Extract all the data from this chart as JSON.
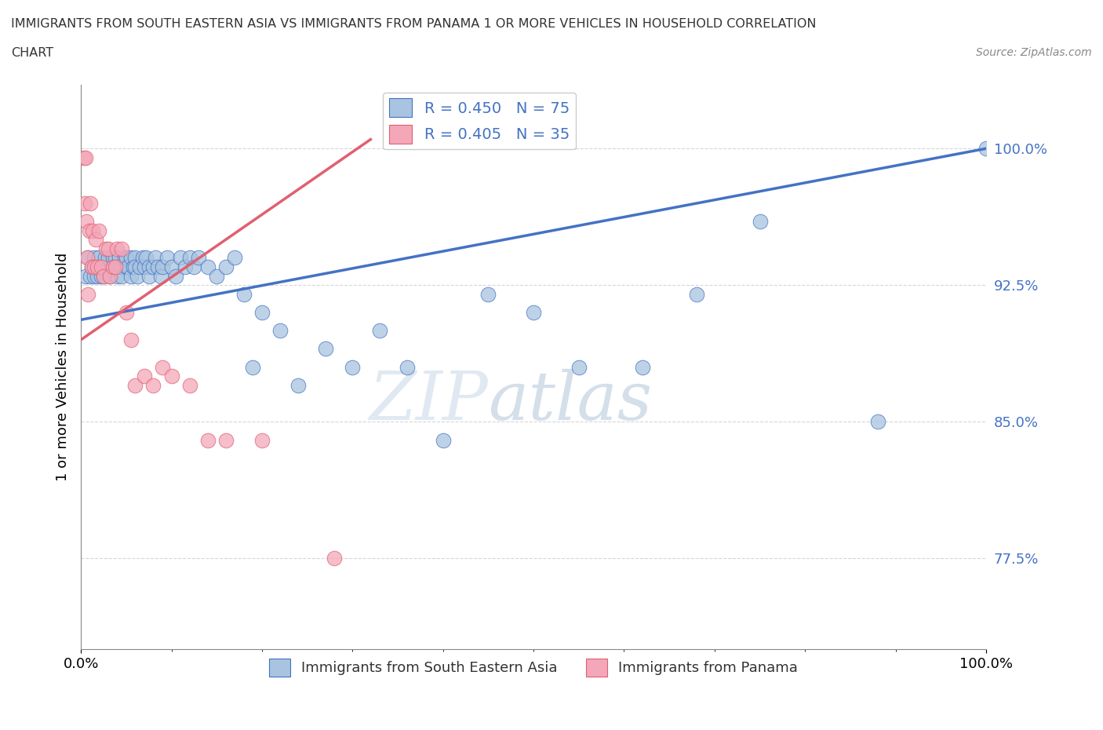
{
  "title_line1": "IMMIGRANTS FROM SOUTH EASTERN ASIA VS IMMIGRANTS FROM PANAMA 1 OR MORE VEHICLES IN HOUSEHOLD CORRELATION",
  "title_line2": "CHART",
  "source_text": "Source: ZipAtlas.com",
  "ylabel": "1 or more Vehicles in Household",
  "xmin": 0.0,
  "xmax": 1.0,
  "ymin": 0.725,
  "ymax": 1.035,
  "yticks": [
    0.775,
    0.85,
    0.925,
    1.0
  ],
  "ytick_labels": [
    "77.5%",
    "85.0%",
    "92.5%",
    "100.0%"
  ],
  "xtick_labels": [
    "0.0%",
    "100.0%"
  ],
  "xticks": [
    0.0,
    1.0
  ],
  "blue_R": 0.45,
  "blue_N": 75,
  "pink_R": 0.405,
  "pink_N": 35,
  "blue_color": "#a8c4e0",
  "pink_color": "#f4a7b9",
  "blue_line_color": "#4472c4",
  "pink_line_color": "#e06070",
  "legend_text_color": "#4472c4",
  "watermark_zip": "ZIP",
  "watermark_atlas": "atlas",
  "blue_line_x0": 0.0,
  "blue_line_y0": 0.906,
  "blue_line_x1": 1.0,
  "blue_line_y1": 1.0,
  "pink_line_x0": 0.0,
  "pink_line_y0": 0.895,
  "pink_line_x1": 0.32,
  "pink_line_y1": 1.005,
  "blue_scatter_x": [
    0.005,
    0.008,
    0.01,
    0.012,
    0.015,
    0.015,
    0.018,
    0.02,
    0.02,
    0.022,
    0.025,
    0.025,
    0.027,
    0.03,
    0.03,
    0.032,
    0.035,
    0.035,
    0.038,
    0.04,
    0.04,
    0.042,
    0.045,
    0.045,
    0.048,
    0.05,
    0.05,
    0.052,
    0.055,
    0.055,
    0.058,
    0.06,
    0.06,
    0.062,
    0.065,
    0.068,
    0.07,
    0.072,
    0.075,
    0.075,
    0.08,
    0.082,
    0.085,
    0.088,
    0.09,
    0.095,
    0.1,
    0.105,
    0.11,
    0.115,
    0.12,
    0.125,
    0.13,
    0.14,
    0.15,
    0.16,
    0.17,
    0.18,
    0.19,
    0.2,
    0.22,
    0.24,
    0.27,
    0.3,
    0.33,
    0.36,
    0.4,
    0.45,
    0.5,
    0.55,
    0.62,
    0.68,
    0.75,
    0.88,
    1.0
  ],
  "blue_scatter_y": [
    0.93,
    0.94,
    0.93,
    0.935,
    0.93,
    0.94,
    0.93,
    0.935,
    0.94,
    0.93,
    0.935,
    0.93,
    0.94,
    0.935,
    0.94,
    0.93,
    0.94,
    0.935,
    0.94,
    0.935,
    0.93,
    0.94,
    0.935,
    0.93,
    0.94,
    0.935,
    0.94,
    0.935,
    0.94,
    0.93,
    0.935,
    0.94,
    0.935,
    0.93,
    0.935,
    0.94,
    0.935,
    0.94,
    0.935,
    0.93,
    0.935,
    0.94,
    0.935,
    0.93,
    0.935,
    0.94,
    0.935,
    0.93,
    0.94,
    0.935,
    0.94,
    0.935,
    0.94,
    0.935,
    0.93,
    0.935,
    0.94,
    0.92,
    0.88,
    0.91,
    0.9,
    0.87,
    0.89,
    0.88,
    0.9,
    0.88,
    0.84,
    0.92,
    0.91,
    0.88,
    0.88,
    0.92,
    0.96,
    0.85,
    1.0
  ],
  "pink_scatter_x": [
    0.003,
    0.004,
    0.005,
    0.006,
    0.007,
    0.008,
    0.009,
    0.01,
    0.012,
    0.013,
    0.015,
    0.016,
    0.018,
    0.02,
    0.022,
    0.025,
    0.028,
    0.03,
    0.032,
    0.035,
    0.038,
    0.04,
    0.045,
    0.05,
    0.055,
    0.06,
    0.07,
    0.08,
    0.09,
    0.1,
    0.12,
    0.14,
    0.16,
    0.2,
    0.28
  ],
  "pink_scatter_y": [
    0.995,
    0.97,
    0.995,
    0.96,
    0.94,
    0.92,
    0.955,
    0.97,
    0.935,
    0.955,
    0.935,
    0.95,
    0.935,
    0.955,
    0.935,
    0.93,
    0.945,
    0.945,
    0.93,
    0.935,
    0.935,
    0.945,
    0.945,
    0.91,
    0.895,
    0.87,
    0.875,
    0.87,
    0.88,
    0.875,
    0.87,
    0.84,
    0.84,
    0.84,
    0.775
  ]
}
